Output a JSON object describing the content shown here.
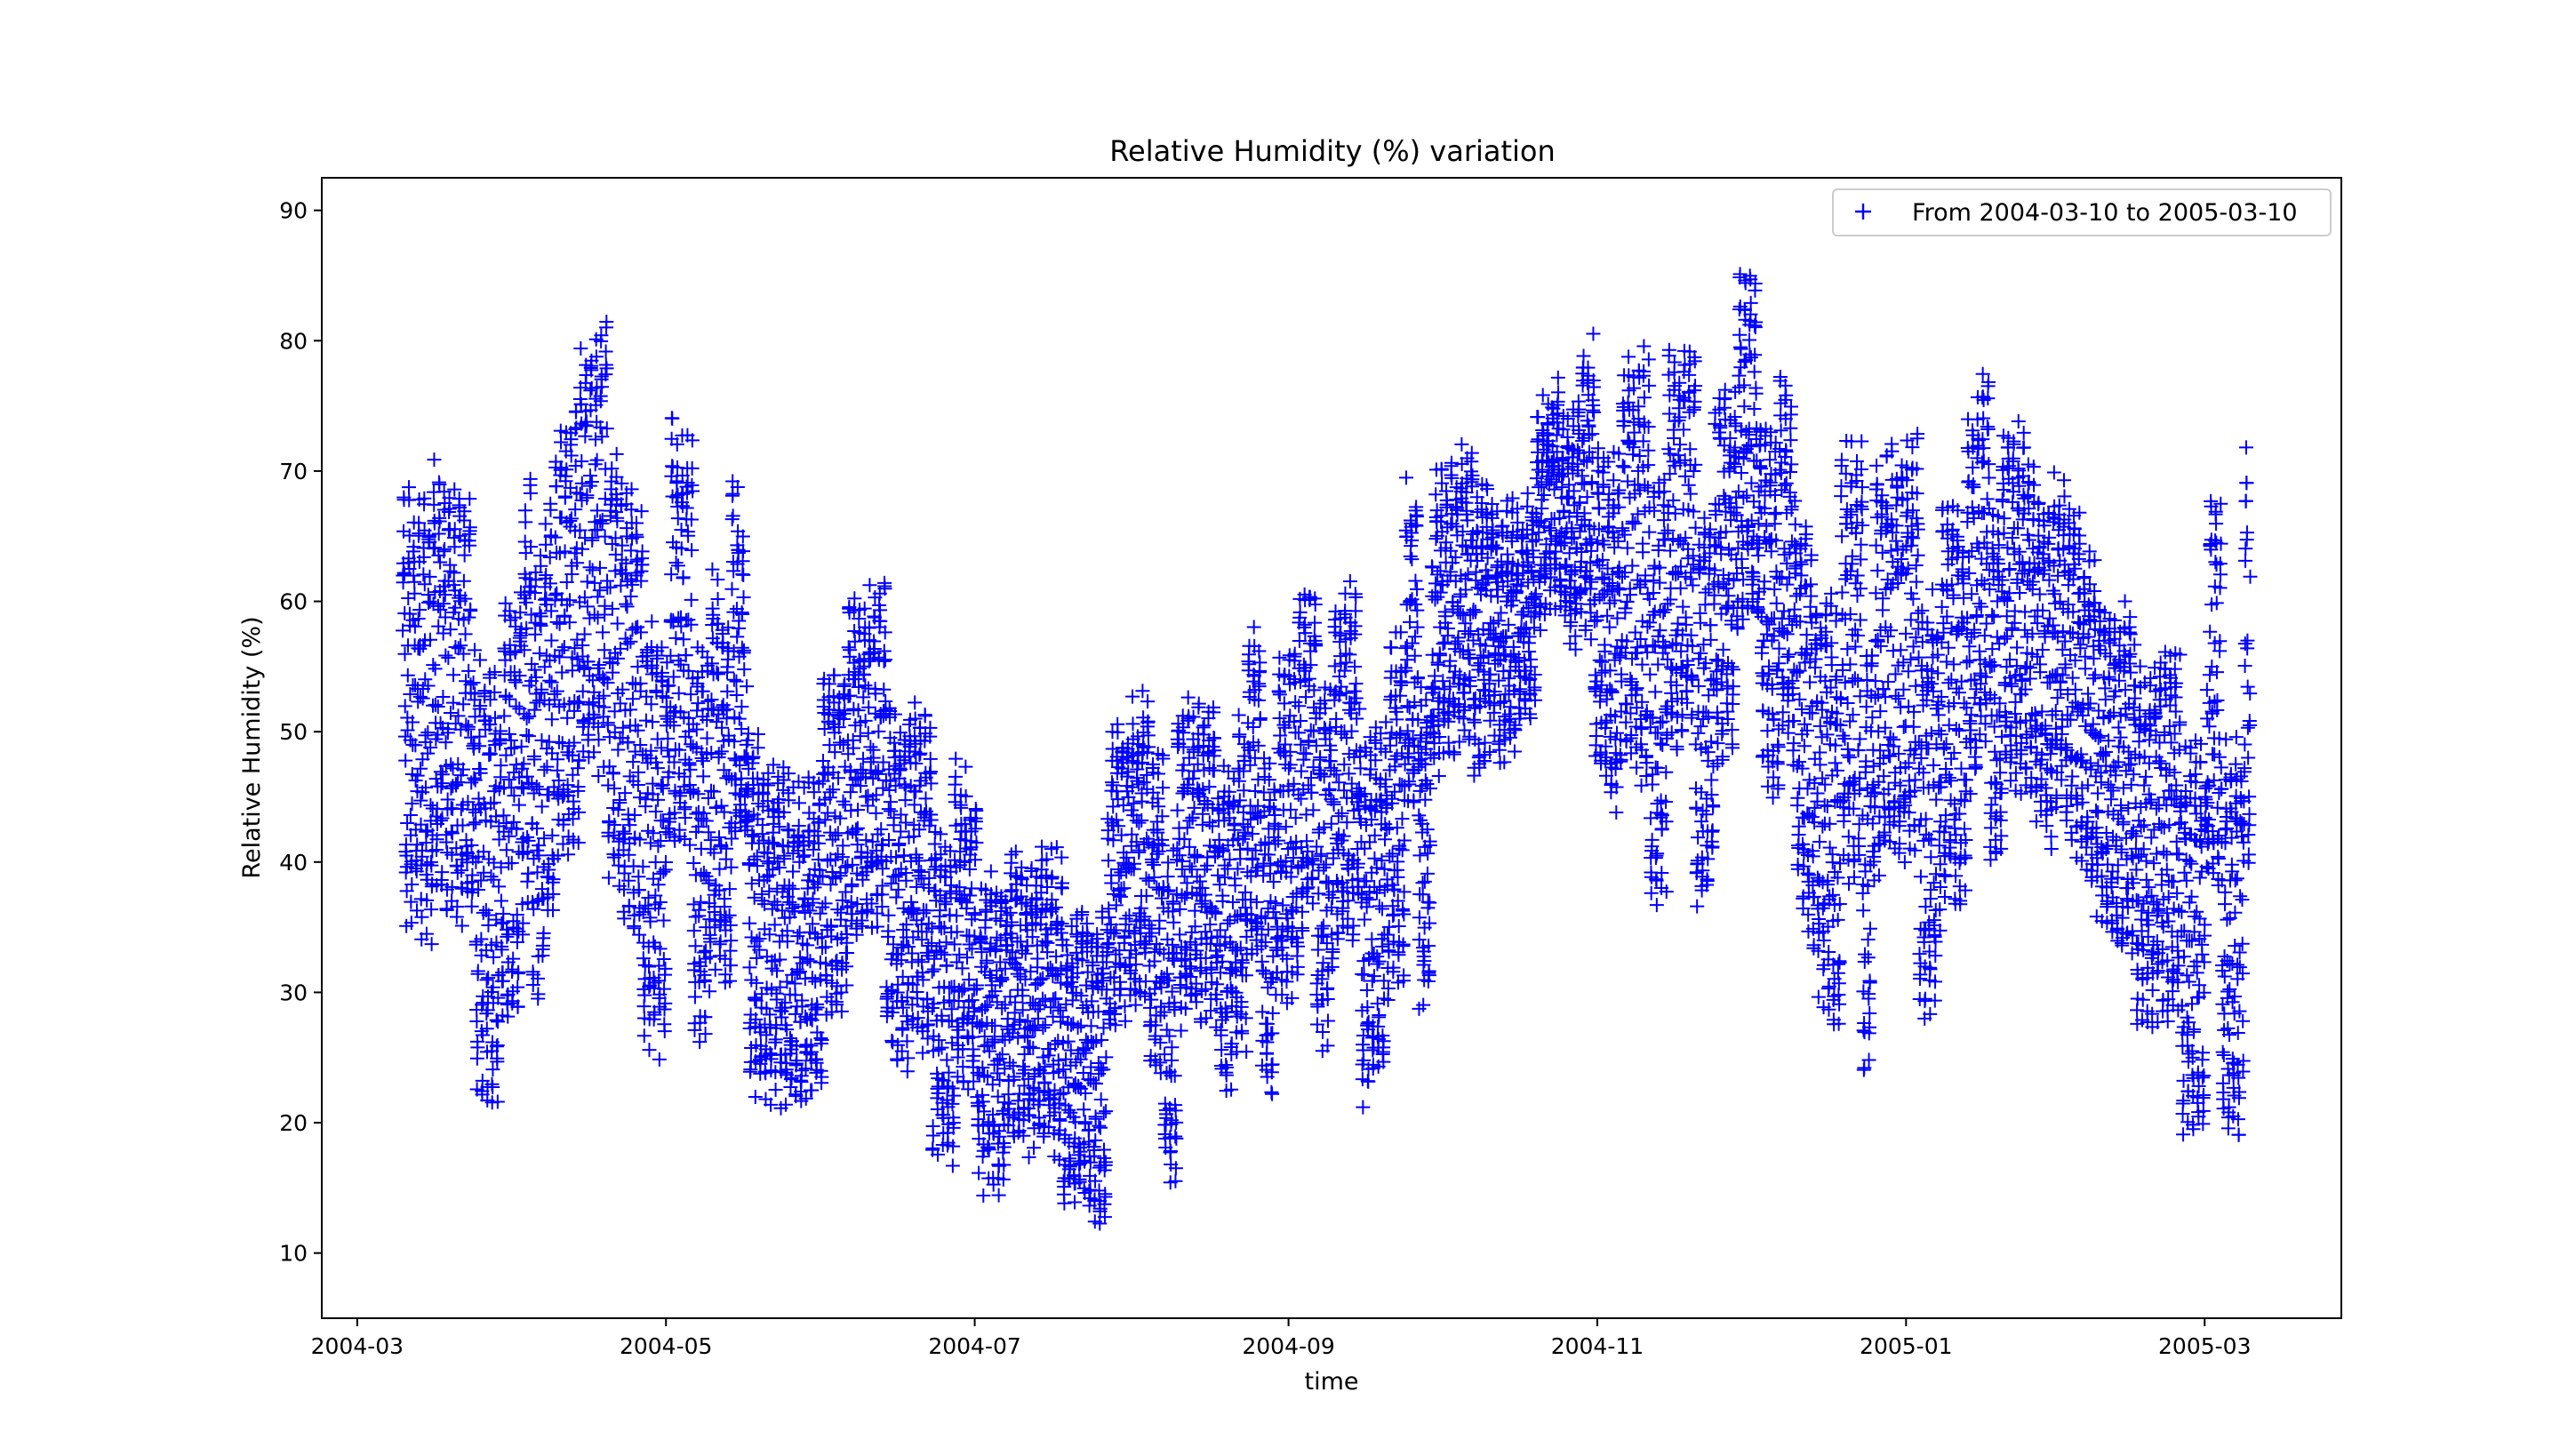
{
  "chart_data": {
    "type": "scatter",
    "title": "Relative Humidity (%) variation",
    "xlabel": "time",
    "ylabel": "Relative Humidity (%)",
    "x_type": "date",
    "xlim": [
      "2004-02-23",
      "2005-03-28"
    ],
    "ylim": [
      5,
      92.5
    ],
    "x_ticks": [
      "2004-03",
      "2004-05",
      "2004-07",
      "2004-09",
      "2004-11",
      "2005-01",
      "2005-03"
    ],
    "y_ticks": [
      10,
      20,
      30,
      40,
      50,
      60,
      70,
      80,
      90
    ],
    "grid": false,
    "legend_position": "top-right",
    "colors": {
      "series": "#0000ff",
      "axes": "#000000"
    },
    "marker": "+",
    "series": [
      {
        "name": "From 2004-03-10 to 2005-03-10",
        "x_start": "2004-03-10",
        "x_end": "2005-03-10",
        "sampling": "hourly",
        "profile_dates": [
          "2004-03-10",
          "2004-04-01",
          "2004-04-20",
          "2004-05-10",
          "2004-05-25",
          "2004-06-15",
          "2004-07-01",
          "2004-07-20",
          "2004-08-10",
          "2004-09-01",
          "2004-09-20",
          "2004-10-10",
          "2004-10-25",
          "2004-11-10",
          "2004-12-01",
          "2004-12-20",
          "2005-01-10",
          "2005-01-25",
          "2005-02-10",
          "2005-03-10"
        ],
        "profile_mean": [
          55,
          48,
          55,
          50,
          38,
          40,
          33,
          30,
          36,
          38,
          45,
          55,
          65,
          55,
          65,
          50,
          55,
          55,
          43,
          45
        ],
        "profile_spread": [
          22,
          22,
          23,
          20,
          16,
          17,
          15,
          14,
          16,
          17,
          18,
          13,
          9,
          22,
          17,
          22,
          21,
          17,
          17,
          21
        ],
        "min": 9,
        "max": 88.5
      }
    ]
  }
}
